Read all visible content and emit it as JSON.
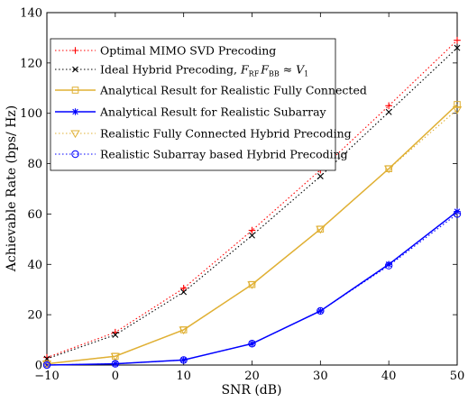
{
  "chart_data": {
    "type": "line",
    "xlabel": "SNR (dB)",
    "ylabel": "Achievable Rate (bps/ Hz)",
    "xlim": [
      -10,
      50
    ],
    "ylim": [
      0,
      140
    ],
    "xticks": [
      -10,
      0,
      10,
      20,
      30,
      40,
      50
    ],
    "yticks": [
      0,
      20,
      40,
      60,
      80,
      100,
      120,
      140
    ],
    "xtick_labels": [
      "−10",
      "0",
      "10",
      "20",
      "30",
      "40",
      "50"
    ],
    "ytick_labels": [
      "0",
      "20",
      "40",
      "60",
      "80",
      "100",
      "120",
      "140"
    ],
    "grid": false,
    "legend_position": "top-left",
    "x": [
      -10,
      0,
      10,
      20,
      30,
      40,
      50
    ],
    "series": [
      {
        "name": "Optimal MIMO SVD Precoding",
        "values": [
          3.0,
          13.0,
          30.5,
          53.5,
          77.5,
          103.0,
          129.0
        ],
        "color": "#ff0000",
        "line": "dotted",
        "marker": "plus"
      },
      {
        "name": "Ideal Hybrid Precoding, F_RF F_BB ≈ V_1",
        "values": [
          2.5,
          12.0,
          29.0,
          51.5,
          75.0,
          100.5,
          126.0
        ],
        "color": "#000000",
        "line": "dotted",
        "marker": "x"
      },
      {
        "name": "Analytical Result for Realistic Fully Connected",
        "values": [
          0.5,
          3.5,
          14.0,
          32.0,
          54.0,
          78.0,
          103.5
        ],
        "color": "#e0b034",
        "line": "solid",
        "marker": "square"
      },
      {
        "name": "Analytical Result for Realistic Subarray",
        "values": [
          0.0,
          0.5,
          2.0,
          8.5,
          21.5,
          40.0,
          61.0
        ],
        "color": "#0000ff",
        "line": "solid",
        "marker": "star"
      },
      {
        "name": "Realistic Fully Connected Hybrid Precoding",
        "values": [
          0.5,
          3.5,
          14.0,
          32.0,
          54.0,
          78.0,
          101.5
        ],
        "color": "#e0b034",
        "line": "dotted",
        "marker": "triangle-down"
      },
      {
        "name": "Realistic Subarray based Hybrid Precoding",
        "values": [
          0.0,
          0.5,
          2.0,
          8.5,
          21.5,
          39.5,
          60.0
        ],
        "color": "#0000ff",
        "line": "dotted",
        "marker": "circle"
      }
    ]
  }
}
